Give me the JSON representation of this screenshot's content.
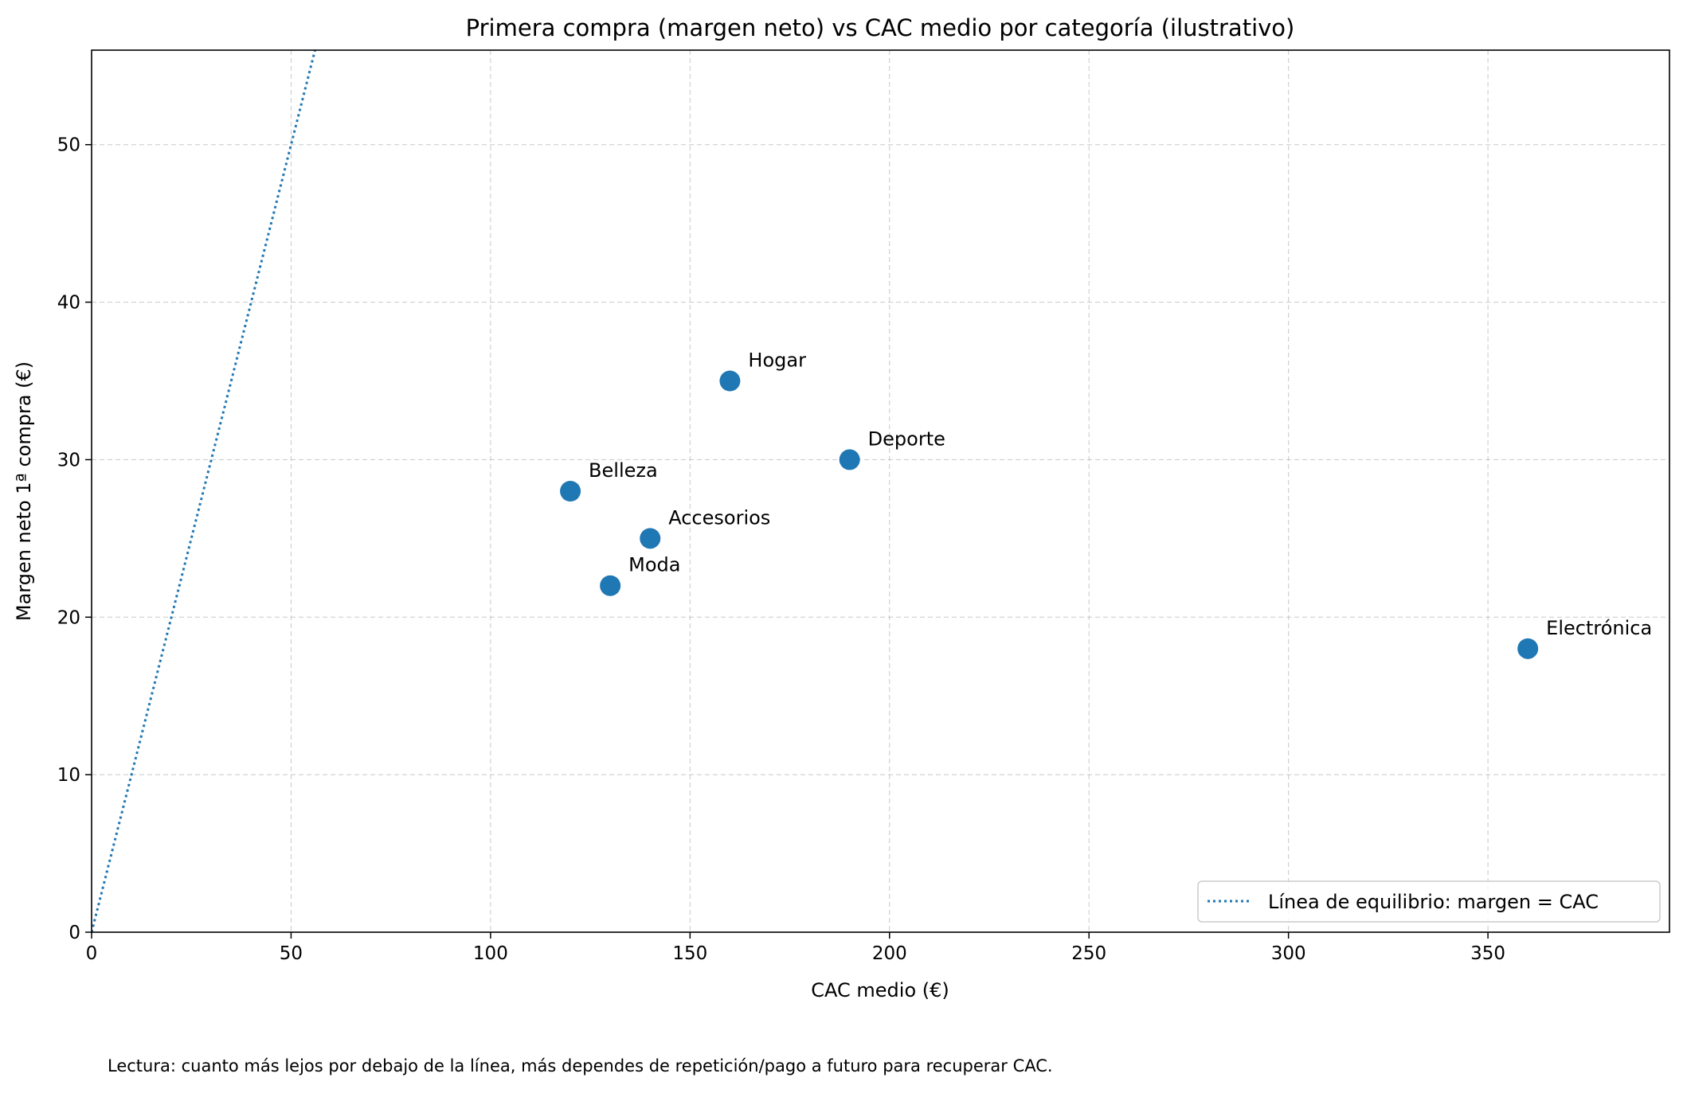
{
  "chart_data": {
    "type": "scatter",
    "title": "Primera compra (margen neto) vs CAC medio por categoría (ilustrativo)",
    "xlabel": "CAC medio (€)",
    "ylabel": "Margen neto 1ª compra (€)",
    "xlim": [
      0,
      395.5
    ],
    "ylim": [
      0,
      56
    ],
    "xticks": [
      0,
      50,
      100,
      150,
      200,
      250,
      300,
      350
    ],
    "yticks": [
      0,
      10,
      20,
      30,
      40,
      50
    ],
    "grid": true,
    "legend_position": "bottom-right",
    "color": "#1f77b4",
    "points": [
      {
        "label": "Moda",
        "x": 130,
        "y": 22
      },
      {
        "label": "Electrónica",
        "x": 360,
        "y": 18
      },
      {
        "label": "Hogar",
        "x": 160,
        "y": 35
      },
      {
        "label": "Belleza",
        "x": 120,
        "y": 28
      },
      {
        "label": "Deporte",
        "x": 190,
        "y": 30
      },
      {
        "label": "Accesorios",
        "x": 140,
        "y": 25
      }
    ],
    "reference_line": {
      "name": "Línea de equilibrio: margen = CAC",
      "style": "dotted",
      "slope": 1,
      "intercept": 0
    },
    "footnote": "Lectura: cuanto más lejos por debajo de la línea, más dependes de repetición/pago a futuro para recuperar CAC."
  }
}
